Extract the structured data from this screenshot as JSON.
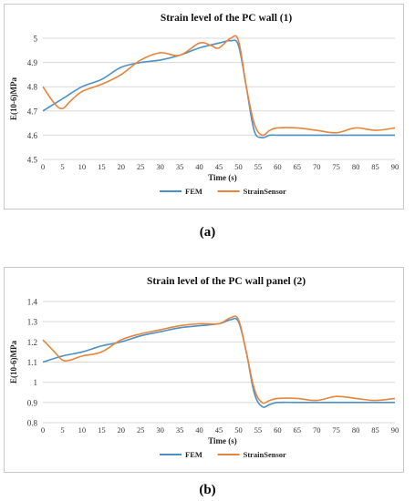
{
  "chart_data": [
    {
      "type": "line",
      "title": "Strain level of the PC wall (1)",
      "xlabel": "Time (s)",
      "ylabel": "E(10-6)MPa",
      "xlim": [
        0,
        90
      ],
      "ylim": [
        4.5,
        5
      ],
      "xticks": [
        "0",
        "5",
        "10",
        "15",
        "20",
        "25",
        "30",
        "35",
        "40",
        "45",
        "50",
        "55",
        "60",
        "65",
        "70",
        "75",
        "80",
        "85",
        "90"
      ],
      "yticks": [
        "4.5",
        "4.6",
        "4.7",
        "4.8",
        "4.9",
        "5"
      ],
      "grid": true,
      "legend": "bottom",
      "series": [
        {
          "name": "FEM",
          "color": "#4a90c8",
          "x": [
            0,
            5,
            10,
            15,
            20,
            25,
            30,
            35,
            40,
            45,
            48,
            50,
            52,
            54,
            56,
            58,
            60,
            65,
            70,
            75,
            80,
            85,
            90
          ],
          "y": [
            4.7,
            4.75,
            4.8,
            4.83,
            4.88,
            4.9,
            4.91,
            4.93,
            4.96,
            4.98,
            4.99,
            4.97,
            4.8,
            4.62,
            4.59,
            4.6,
            4.6,
            4.6,
            4.6,
            4.6,
            4.6,
            4.6,
            4.6
          ]
        },
        {
          "name": "StrainSensor",
          "color": "#e8843a",
          "x": [
            0,
            3,
            5,
            7,
            10,
            15,
            20,
            25,
            30,
            35,
            40,
            43,
            45,
            48,
            50,
            52,
            54,
            56,
            58,
            60,
            65,
            70,
            75,
            80,
            85,
            90
          ],
          "y": [
            4.8,
            4.73,
            4.71,
            4.74,
            4.78,
            4.81,
            4.85,
            4.91,
            4.94,
            4.93,
            4.98,
            4.97,
            4.96,
            5.0,
            4.99,
            4.8,
            4.65,
            4.6,
            4.62,
            4.63,
            4.63,
            4.62,
            4.61,
            4.63,
            4.62,
            4.63
          ]
        }
      ]
    },
    {
      "type": "line",
      "title": "Strain level of the PC wall panel (2)",
      "xlabel": "Time (s)",
      "ylabel": "E(10-6)MPa",
      "xlim": [
        0,
        90
      ],
      "ylim": [
        0.8,
        1.4
      ],
      "xticks": [
        "0",
        "5",
        "10",
        "15",
        "20",
        "25",
        "30",
        "35",
        "40",
        "45",
        "50",
        "55",
        "60",
        "65",
        "70",
        "75",
        "80",
        "85",
        "90"
      ],
      "yticks": [
        "0.8",
        "0.9",
        "1",
        "1.1",
        "1.2",
        "1.3",
        "1.4"
      ],
      "grid": true,
      "legend": "bottom",
      "series": [
        {
          "name": "FEM",
          "color": "#4a90c8",
          "x": [
            0,
            5,
            10,
            15,
            20,
            25,
            30,
            35,
            40,
            45,
            48,
            50,
            52,
            54,
            56,
            58,
            60,
            65,
            70,
            75,
            80,
            85,
            90
          ],
          "y": [
            1.1,
            1.13,
            1.15,
            1.18,
            1.2,
            1.23,
            1.25,
            1.27,
            1.28,
            1.29,
            1.31,
            1.3,
            1.15,
            0.95,
            0.88,
            0.89,
            0.9,
            0.9,
            0.9,
            0.9,
            0.9,
            0.9,
            0.9
          ]
        },
        {
          "name": "StrainSensor",
          "color": "#e8843a",
          "x": [
            0,
            3,
            5,
            7,
            10,
            15,
            20,
            25,
            30,
            35,
            40,
            45,
            48,
            50,
            52,
            54,
            56,
            58,
            60,
            65,
            70,
            75,
            80,
            85,
            90
          ],
          "y": [
            1.21,
            1.15,
            1.11,
            1.11,
            1.13,
            1.15,
            1.21,
            1.24,
            1.26,
            1.28,
            1.29,
            1.29,
            1.32,
            1.31,
            1.15,
            0.97,
            0.9,
            0.91,
            0.92,
            0.92,
            0.91,
            0.93,
            0.92,
            0.91,
            0.92
          ]
        }
      ]
    }
  ],
  "labels": {
    "a": "(a)",
    "b": "(b)"
  }
}
